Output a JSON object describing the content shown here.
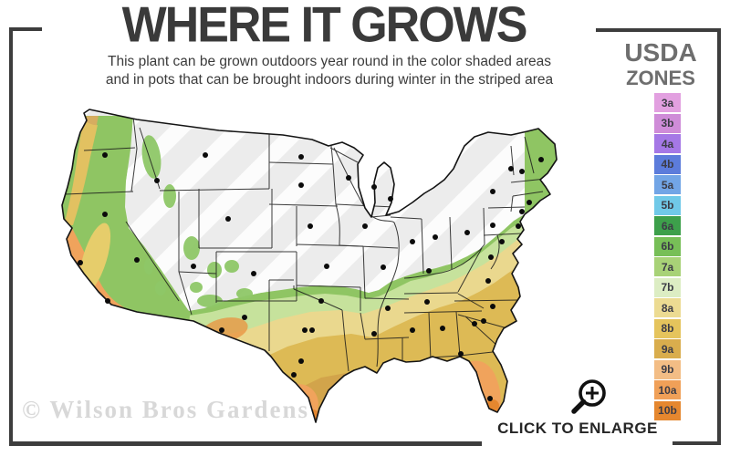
{
  "header": {
    "title": "WHERE IT GROWS",
    "subtitle_line1": "This plant can be grown outdoors year round in the color shaded areas",
    "subtitle_line2": "and in pots that can be brought indoors during winter in the striped area"
  },
  "legend": {
    "title_line1": "USDA",
    "title_line2": "ZONES",
    "zones": [
      {
        "label": "3a",
        "color": "#e2a0e0"
      },
      {
        "label": "3b",
        "color": "#cf8cd8"
      },
      {
        "label": "4a",
        "color": "#a578e6"
      },
      {
        "label": "4b",
        "color": "#5c7cdb"
      },
      {
        "label": "5a",
        "color": "#72a5e6"
      },
      {
        "label": "5b",
        "color": "#70c9e8"
      },
      {
        "label": "6a",
        "color": "#3da04b"
      },
      {
        "label": "6b",
        "color": "#77bf57"
      },
      {
        "label": "7a",
        "color": "#a8d277"
      },
      {
        "label": "7b",
        "color": "#dcedc3"
      },
      {
        "label": "8a",
        "color": "#ecdb92"
      },
      {
        "label": "8b",
        "color": "#e5c45c"
      },
      {
        "label": "9a",
        "color": "#d9ad4d"
      },
      {
        "label": "9b",
        "color": "#f3bd85"
      },
      {
        "label": "10a",
        "color": "#f0a058"
      },
      {
        "label": "10b",
        "color": "#e5872f"
      }
    ]
  },
  "map": {
    "colors": {
      "striped_base": "#ececec",
      "stripe": "#ffffff",
      "green_band": "#8fc563",
      "pale_green_band": "#c6e29c",
      "pale_gold_band": "#ead88e",
      "gold_band": "#ddba55",
      "tan_band": "#d0a24a",
      "orange": "#f0a35c",
      "deep_orange": "#e5872f",
      "border": "#1b1b1b"
    }
  },
  "footer": {
    "watermark": "© Wilson Bros Gardens",
    "enlarge_label": "CLICK TO ENLARGE"
  }
}
